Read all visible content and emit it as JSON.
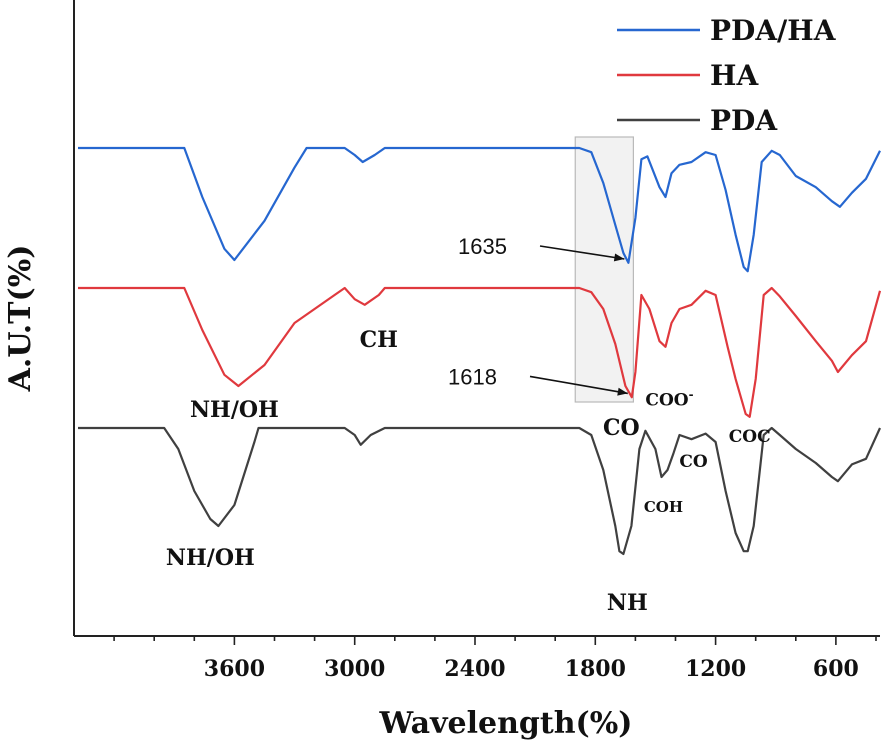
{
  "chart_data": {
    "type": "line",
    "xlabel": "Wavelength(%)",
    "ylabel": "A.U.T(%)",
    "xlim": [
      4400,
      380
    ],
    "x_reversed": true,
    "xticks": [
      3600,
      3000,
      2400,
      1800,
      1200,
      600
    ],
    "minor_tick_step": 200,
    "grid": false,
    "legend_position": "top-right",
    "series": [
      {
        "name": "PDA/HA",
        "color": "#2667d0",
        "offset": 2.0,
        "points": [
          [
            4380,
            0
          ],
          [
            3850,
            0
          ],
          [
            3760,
            -0.35
          ],
          [
            3650,
            -0.72
          ],
          [
            3600,
            -0.8
          ],
          [
            3450,
            -0.52
          ],
          [
            3300,
            -0.14
          ],
          [
            3240,
            0
          ],
          [
            3050,
            0
          ],
          [
            3000,
            -0.05
          ],
          [
            2960,
            -0.1
          ],
          [
            2900,
            -0.05
          ],
          [
            2850,
            0
          ],
          [
            1880,
            0
          ],
          [
            1820,
            -0.03
          ],
          [
            1760,
            -0.25
          ],
          [
            1700,
            -0.55
          ],
          [
            1660,
            -0.75
          ],
          [
            1635,
            -0.82
          ],
          [
            1600,
            -0.5
          ],
          [
            1570,
            -0.08
          ],
          [
            1540,
            -0.06
          ],
          [
            1480,
            -0.28
          ],
          [
            1450,
            -0.35
          ],
          [
            1420,
            -0.18
          ],
          [
            1380,
            -0.12
          ],
          [
            1320,
            -0.1
          ],
          [
            1250,
            -0.03
          ],
          [
            1200,
            -0.05
          ],
          [
            1150,
            -0.3
          ],
          [
            1100,
            -0.62
          ],
          [
            1060,
            -0.85
          ],
          [
            1040,
            -0.88
          ],
          [
            1010,
            -0.62
          ],
          [
            970,
            -0.1
          ],
          [
            920,
            -0.02
          ],
          [
            880,
            -0.05
          ],
          [
            800,
            -0.2
          ],
          [
            700,
            -0.28
          ],
          [
            620,
            -0.38
          ],
          [
            580,
            -0.42
          ],
          [
            520,
            -0.32
          ],
          [
            450,
            -0.22
          ],
          [
            380,
            -0.02
          ]
        ]
      },
      {
        "name": "HA",
        "color": "#e0393e",
        "offset": 1.0,
        "points": [
          [
            4380,
            0
          ],
          [
            3850,
            0
          ],
          [
            3760,
            -0.3
          ],
          [
            3650,
            -0.62
          ],
          [
            3580,
            -0.7
          ],
          [
            3450,
            -0.55
          ],
          [
            3300,
            -0.25
          ],
          [
            3100,
            -0.05
          ],
          [
            3050,
            0
          ],
          [
            3000,
            -0.08
          ],
          [
            2950,
            -0.12
          ],
          [
            2880,
            -0.05
          ],
          [
            2850,
            0
          ],
          [
            1880,
            0
          ],
          [
            1820,
            -0.03
          ],
          [
            1760,
            -0.15
          ],
          [
            1700,
            -0.4
          ],
          [
            1650,
            -0.7
          ],
          [
            1618,
            -0.78
          ],
          [
            1600,
            -0.6
          ],
          [
            1570,
            -0.05
          ],
          [
            1530,
            -0.15
          ],
          [
            1480,
            -0.38
          ],
          [
            1450,
            -0.42
          ],
          [
            1420,
            -0.25
          ],
          [
            1380,
            -0.15
          ],
          [
            1320,
            -0.12
          ],
          [
            1250,
            -0.02
          ],
          [
            1200,
            -0.05
          ],
          [
            1140,
            -0.42
          ],
          [
            1100,
            -0.65
          ],
          [
            1050,
            -0.9
          ],
          [
            1030,
            -0.92
          ],
          [
            1000,
            -0.65
          ],
          [
            960,
            -0.05
          ],
          [
            920,
            0
          ],
          [
            880,
            -0.06
          ],
          [
            800,
            -0.2
          ],
          [
            700,
            -0.38
          ],
          [
            620,
            -0.52
          ],
          [
            590,
            -0.6
          ],
          [
            520,
            -0.48
          ],
          [
            450,
            -0.38
          ],
          [
            380,
            -0.02
          ]
        ]
      },
      {
        "name": "PDA",
        "color": "#404040",
        "offset": 0.0,
        "points": [
          [
            4380,
            0
          ],
          [
            3950,
            0
          ],
          [
            3880,
            -0.15
          ],
          [
            3800,
            -0.45
          ],
          [
            3720,
            -0.65
          ],
          [
            3680,
            -0.7
          ],
          [
            3600,
            -0.55
          ],
          [
            3500,
            -0.1
          ],
          [
            3480,
            0
          ],
          [
            3050,
            0
          ],
          [
            3000,
            -0.05
          ],
          [
            2970,
            -0.12
          ],
          [
            2920,
            -0.05
          ],
          [
            2850,
            0
          ],
          [
            1880,
            0
          ],
          [
            1820,
            -0.05
          ],
          [
            1760,
            -0.3
          ],
          [
            1700,
            -0.7
          ],
          [
            1680,
            -0.88
          ],
          [
            1660,
            -0.9
          ],
          [
            1620,
            -0.7
          ],
          [
            1580,
            -0.15
          ],
          [
            1550,
            -0.02
          ],
          [
            1500,
            -0.15
          ],
          [
            1470,
            -0.35
          ],
          [
            1440,
            -0.3
          ],
          [
            1410,
            -0.18
          ],
          [
            1380,
            -0.05
          ],
          [
            1320,
            -0.08
          ],
          [
            1250,
            -0.04
          ],
          [
            1200,
            -0.1
          ],
          [
            1150,
            -0.45
          ],
          [
            1100,
            -0.75
          ],
          [
            1060,
            -0.88
          ],
          [
            1040,
            -0.88
          ],
          [
            1010,
            -0.7
          ],
          [
            960,
            -0.05
          ],
          [
            920,
            0
          ],
          [
            880,
            -0.05
          ],
          [
            800,
            -0.15
          ],
          [
            700,
            -0.25
          ],
          [
            620,
            -0.35
          ],
          [
            590,
            -0.38
          ],
          [
            520,
            -0.26
          ],
          [
            450,
            -0.22
          ],
          [
            380,
            0
          ]
        ]
      }
    ],
    "annotations": [
      {
        "text": "1635",
        "series": "PDA/HA",
        "target_x": 1635,
        "target_y": -0.8,
        "style": "sans",
        "arrow": true
      },
      {
        "text": "1618",
        "series": "HA",
        "target_x": 1618,
        "target_y": -0.76,
        "style": "sans",
        "arrow": true
      },
      {
        "text": "NH/OH",
        "series": "HA",
        "x": 3600,
        "y": -0.92,
        "style": "serif"
      },
      {
        "text": "CH",
        "series": "HA",
        "x": 2880,
        "y": -0.42,
        "style": "serif"
      },
      {
        "text": "COO",
        "sup": "-",
        "series": "HA",
        "x": 1430,
        "y": -0.84,
        "style": "serif"
      },
      {
        "text": "CO",
        "series": "HA",
        "x": 1670,
        "y": -1.05,
        "style": "serif"
      },
      {
        "text": "COC",
        "series": "HA",
        "x": 1030,
        "y": -1.1,
        "style": "serif"
      },
      {
        "text": "NH/OH",
        "series": "PDA",
        "x": 3720,
        "y": -0.98,
        "style": "serif"
      },
      {
        "text": "COH",
        "series": "PDA",
        "x": 1460,
        "y": -0.6,
        "style": "serif"
      },
      {
        "text": "CO",
        "series": "PDA",
        "x": 1310,
        "y": -0.28,
        "style": "serif"
      },
      {
        "text": "NH",
        "series": "PDA",
        "x": 1640,
        "y": -1.3,
        "style": "serif"
      }
    ],
    "highlight_region": [
      1900,
      1610
    ]
  }
}
